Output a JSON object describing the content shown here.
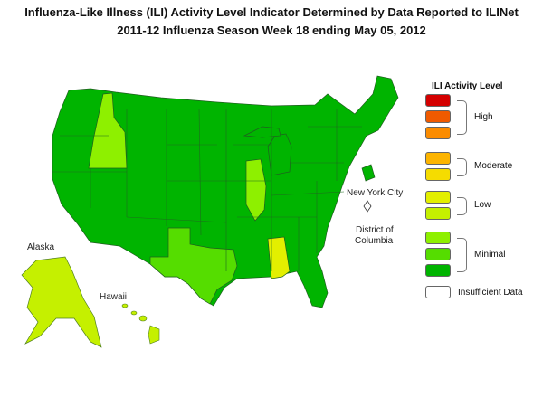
{
  "title": {
    "line1": "Influenza-Like Illness (ILI) Activity Level Indicator Determined by Data Reported to ILINet",
    "line2": "2011-12  Influenza Season Week  18 ending May 05, 2012"
  },
  "legend": {
    "title": "ILI Activity Level",
    "levels": [
      {
        "level": 10,
        "color": "#d40000"
      },
      {
        "level": 9,
        "color": "#f05a00"
      },
      {
        "level": 8,
        "color": "#fb8c00"
      },
      {
        "level": 7,
        "color": "#fcb400"
      },
      {
        "level": 6,
        "color": "#f5dc00"
      },
      {
        "level": 5,
        "color": "#e3ef00"
      },
      {
        "level": 4,
        "color": "#c5f000"
      },
      {
        "level": 3,
        "color": "#8ef000"
      },
      {
        "level": 2,
        "color": "#55dd00"
      },
      {
        "level": 1,
        "color": "#00b400"
      },
      {
        "level": 0,
        "color": "#ffffff"
      }
    ],
    "groups": {
      "high": "High",
      "moderate": "Moderate",
      "low": "Low",
      "minimal": "Minimal",
      "insufficient": "Insufficient Data"
    }
  },
  "map_labels": {
    "nyc": "New York City",
    "dc_line1": "District of",
    "dc_line2": "Columbia",
    "alaska": "Alaska",
    "hawaii": "Hawaii"
  },
  "state_activity": {
    "Alabama": "Low (level 5)",
    "Texas": "Minimal (level 2)",
    "Idaho": "Minimal (level 3)",
    "Illinois": "Minimal (level 3)",
    "Alaska": "Minimal (level 4)",
    "Hawaii": "Minimal (level 4)",
    "All other states": "Minimal (level 1)"
  }
}
